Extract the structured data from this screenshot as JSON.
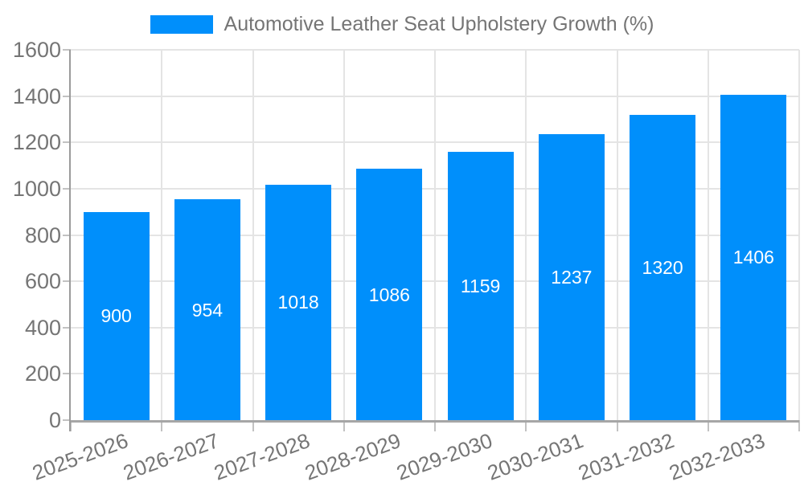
{
  "chart_data": {
    "type": "bar",
    "title": "Automotive Leather Seat Upholstery Growth (%)",
    "categories": [
      "2025-2026",
      "2026-2027",
      "2027-2028",
      "2028-2029",
      "2029-2030",
      "2030-2031",
      "2031-2032",
      "2032-2033"
    ],
    "values": [
      900,
      954,
      1018,
      1086,
      1159,
      1237,
      1320,
      1406
    ],
    "xlabel": "",
    "ylabel": "",
    "ylim": [
      0,
      1600
    ],
    "yticks": [
      0,
      200,
      400,
      600,
      800,
      1000,
      1200,
      1400,
      1600
    ],
    "legend_position": "top",
    "grid": true,
    "x_label_rotation_deg": -20,
    "colors": {
      "bar": "#008FFB",
      "bar_label": "#FFFFFF",
      "axis_text": "#757575",
      "gridline": "#E4E4E4",
      "axis_line_x": "#A6A6A6",
      "axis_line_y": "#9B9B9B",
      "tick": "#C2C2C2",
      "background": "#FFFFFF"
    }
  }
}
